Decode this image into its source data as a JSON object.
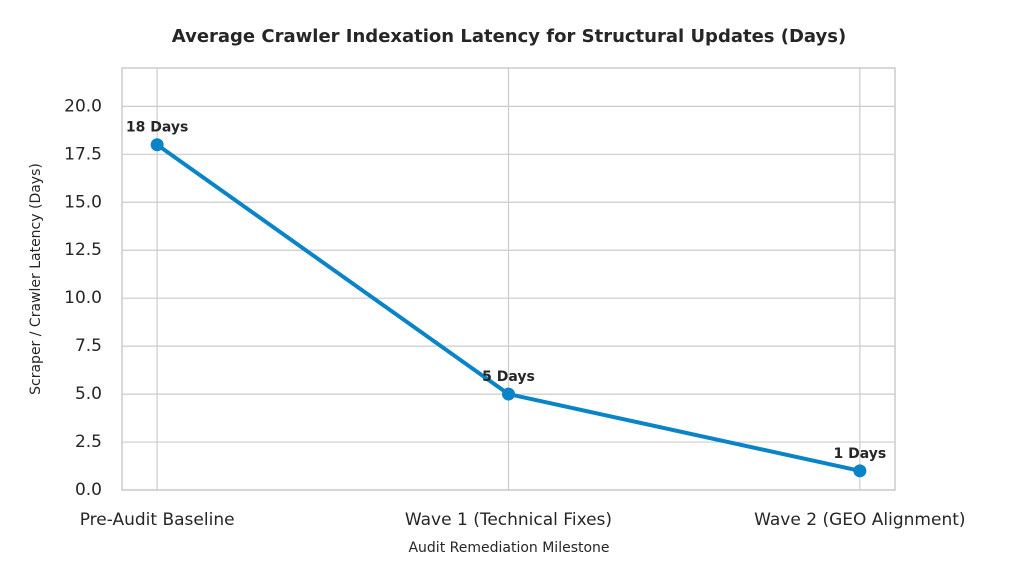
{
  "chart_data": {
    "type": "line",
    "title": "Average Crawler Indexation Latency for Structural Updates (Days)",
    "x_label": "Audit Remediation Milestone",
    "y_label": "Scraper / Crawler Latency (Days)",
    "categories": [
      "Pre-Audit Baseline",
      "Wave 1 (Technical Fixes)",
      "Wave 2 (GEO Alignment)"
    ],
    "series": [
      {
        "name": "Latency",
        "color": "#0a84c8",
        "values": [
          18,
          5,
          1
        ],
        "value_labels": [
          "18 Days",
          "5 Days",
          "1 Days"
        ]
      }
    ],
    "ylim": [
      0,
      22
    ],
    "yticks": [
      {
        "value": 0,
        "label": "0.0"
      },
      2.5,
      {
        "value": 5,
        "label": "5.0"
      },
      7.5,
      {
        "value": 10,
        "label": "10.0"
      },
      12.5,
      {
        "value": 15,
        "label": "15.0"
      },
      17.5,
      {
        "value": 20,
        "label": "20.0"
      }
    ],
    "grid": true
  }
}
